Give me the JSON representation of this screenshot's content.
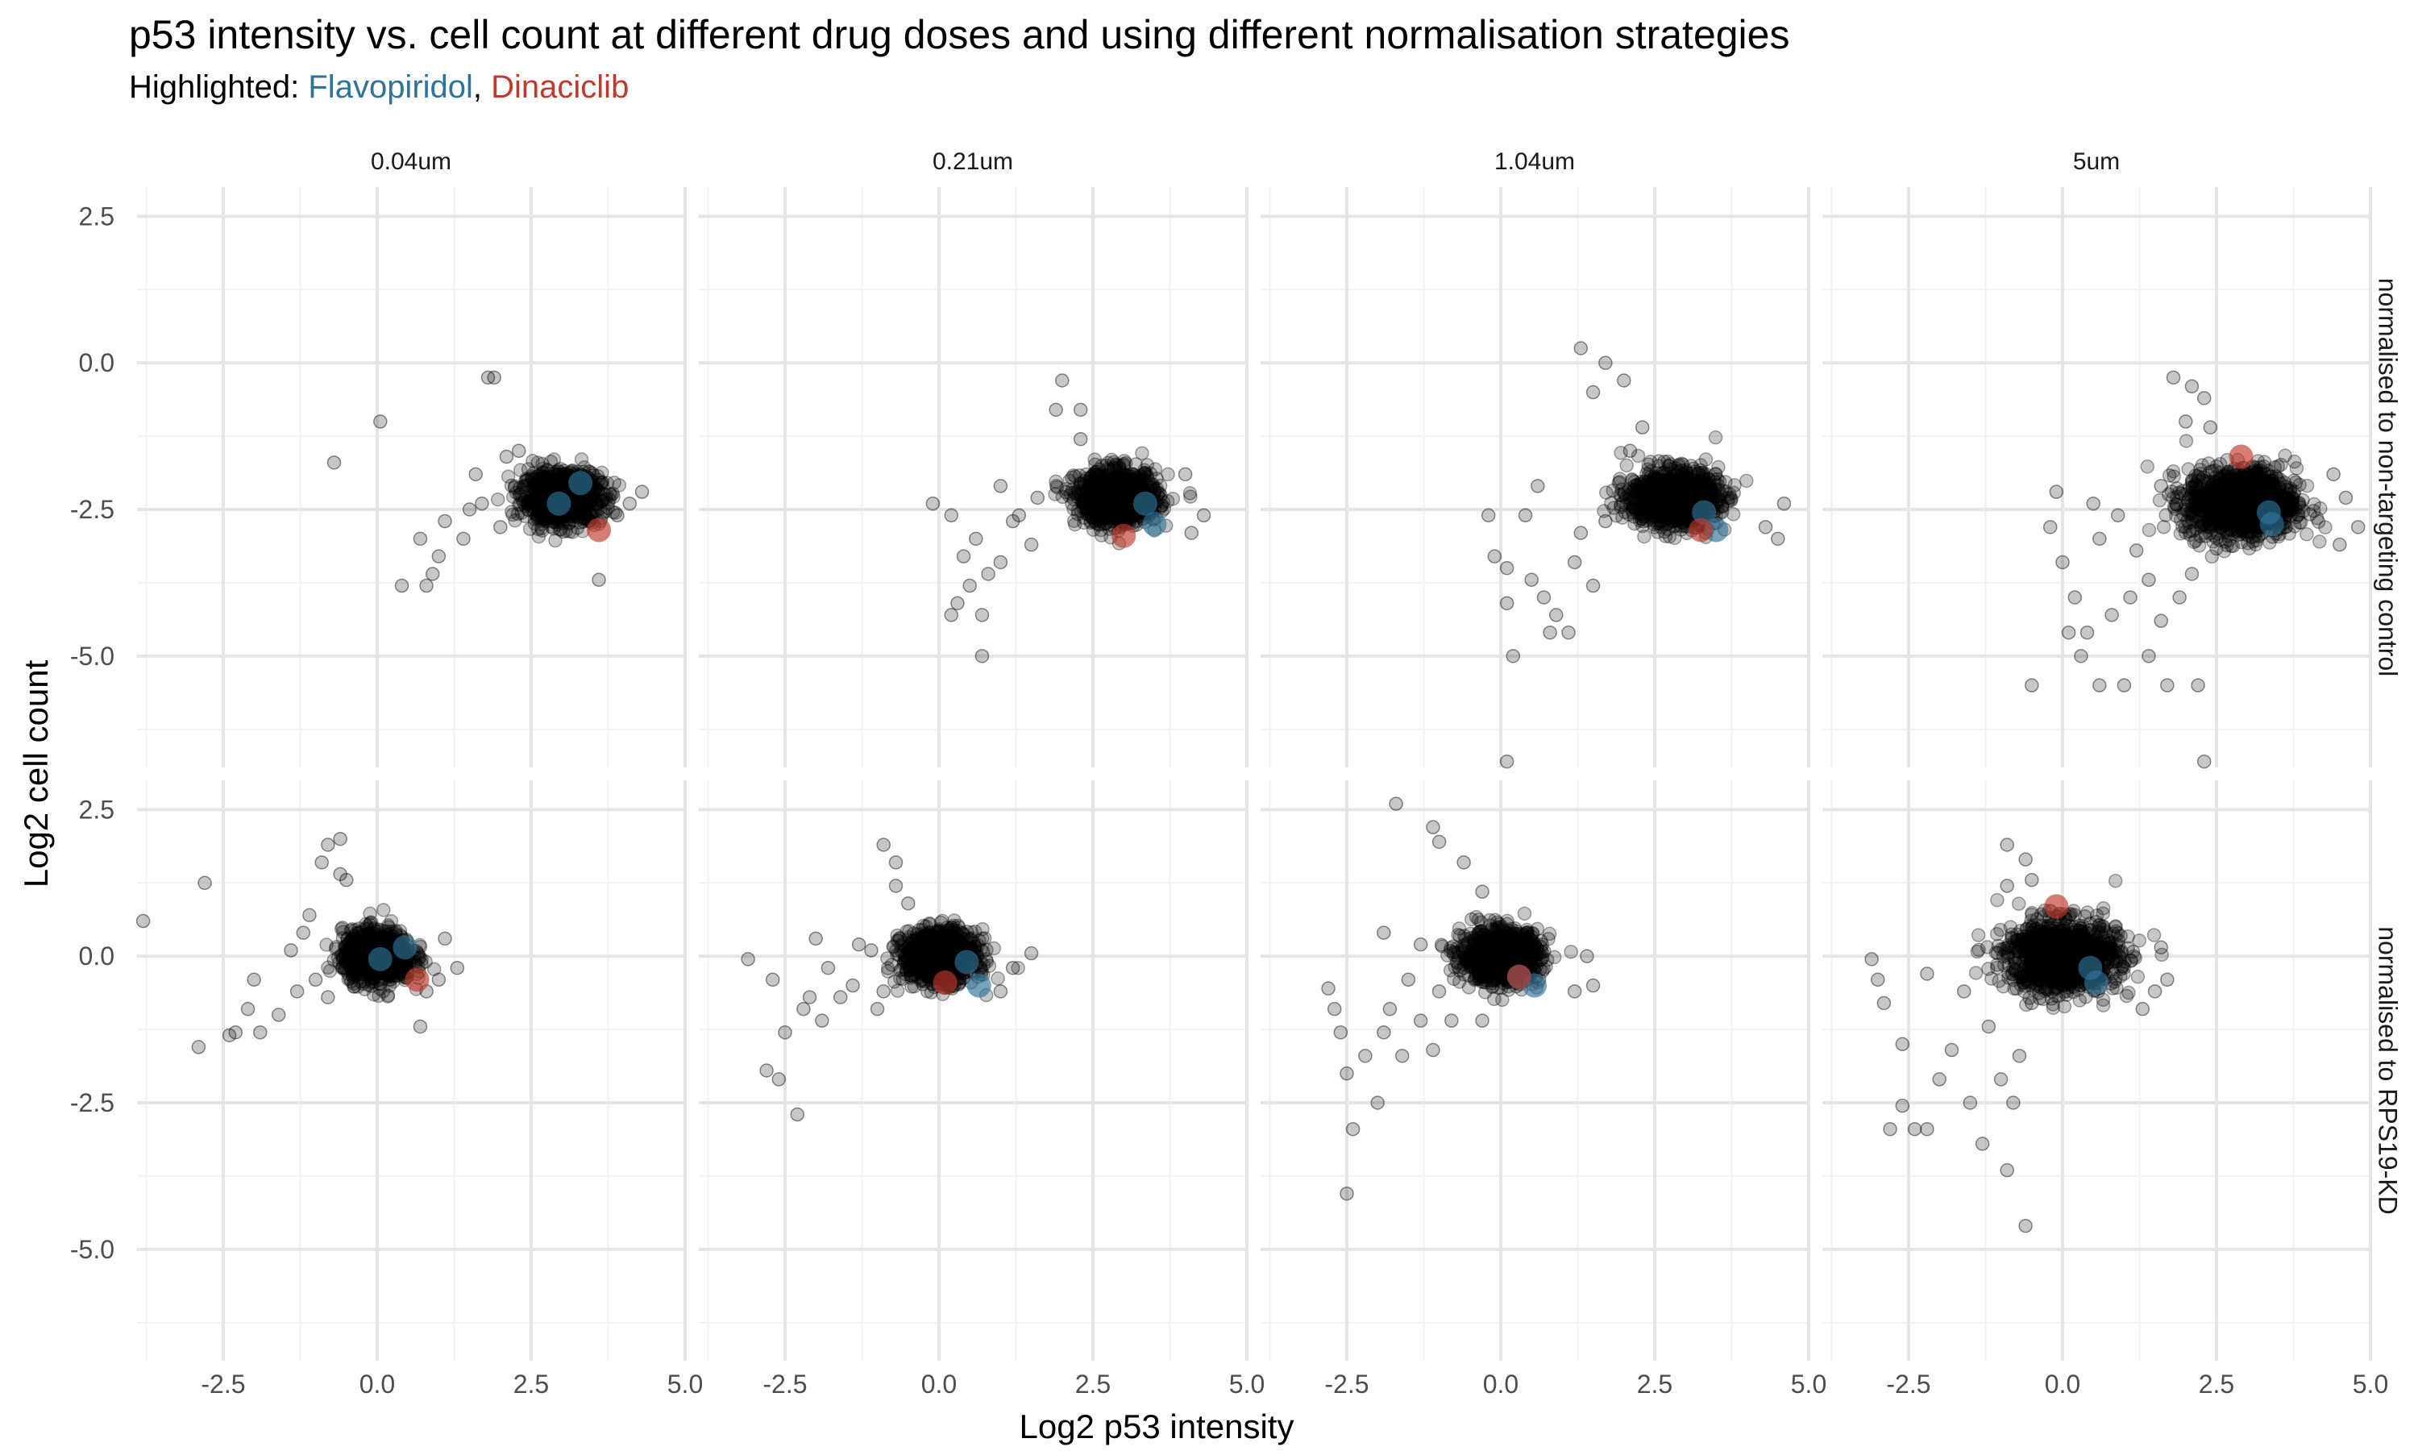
{
  "title": "p53 intensity vs. cell count at different drug doses and using different normalisation strategies",
  "subtitle": {
    "prefix": "Highlighted: ",
    "flavopiridol": "Flavopiridol",
    "separator": ", ",
    "dinaciclib": "Dinaciclib"
  },
  "colors": {
    "points": "#000000",
    "flavopiridol": "#2E7399",
    "dinaciclib": "#C0392B",
    "grid_major": "#E5E5E5",
    "grid_minor": "#F2F2F2",
    "axis_text": "#4D4D4D"
  },
  "chart_data": {
    "type": "scatter",
    "xlabel": "Log2 p53 intensity",
    "ylabel": "Log2 cell count",
    "xlim": [
      -3.9,
      5.0
    ],
    "ylim": [
      -6.9,
      3.0
    ],
    "x_ticks": [
      -2.5,
      0.0,
      2.5,
      5.0
    ],
    "x_tick_labels": [
      "-2.5",
      "0.0",
      "2.5",
      "5.0"
    ],
    "y_ticks": [
      2.5,
      0.0,
      -2.5,
      -5.0
    ],
    "y_tick_labels": [
      "2.5",
      "0.0",
      "-2.5",
      "-5.0"
    ],
    "grid": true,
    "columns": [
      "0.04um",
      "0.21um",
      "1.04um",
      "5um"
    ],
    "rows": [
      "normalised to non-targeting control",
      "normalised to RPS19-KD"
    ],
    "panels": [
      {
        "column": "0.04um",
        "row": "normalised to non-targeting control",
        "cluster": {
          "center": [
            3.0,
            -2.3
          ],
          "sx": 0.32,
          "sy": 0.22,
          "n": 900
        },
        "outliers": [
          [
            1.8,
            -0.25
          ],
          [
            1.9,
            -0.25
          ],
          [
            0.05,
            -1.0
          ],
          [
            -0.7,
            -1.7
          ],
          [
            0.7,
            -3.0
          ],
          [
            0.4,
            -3.8
          ],
          [
            0.8,
            -3.8
          ],
          [
            0.9,
            -3.6
          ],
          [
            1.0,
            -3.3
          ],
          [
            1.1,
            -2.7
          ],
          [
            1.4,
            -3.0
          ],
          [
            1.6,
            -1.9
          ],
          [
            1.5,
            -2.5
          ],
          [
            1.7,
            -2.4
          ],
          [
            2.0,
            -2.8
          ],
          [
            2.1,
            -1.6
          ],
          [
            2.3,
            -1.5
          ],
          [
            3.6,
            -3.7
          ],
          [
            4.1,
            -2.4
          ],
          [
            4.3,
            -2.2
          ],
          [
            3.9,
            -2.6
          ]
        ],
        "flavopiridol": [
          [
            3.3,
            -2.05
          ],
          [
            2.95,
            -2.4
          ]
        ],
        "dinaciclib": [
          [
            3.6,
            -2.85
          ]
        ]
      },
      {
        "column": "0.21um",
        "row": "normalised to non-targeting control",
        "cluster": {
          "center": [
            2.9,
            -2.3
          ],
          "sx": 0.33,
          "sy": 0.23,
          "n": 900
        },
        "outliers": [
          [
            2.0,
            -0.3
          ],
          [
            1.9,
            -0.8
          ],
          [
            2.3,
            -0.8
          ],
          [
            2.3,
            -1.3
          ],
          [
            -0.1,
            -2.4
          ],
          [
            0.2,
            -2.6
          ],
          [
            0.6,
            -3.0
          ],
          [
            0.4,
            -3.3
          ],
          [
            0.5,
            -3.8
          ],
          [
            0.3,
            -4.1
          ],
          [
            0.7,
            -4.3
          ],
          [
            0.2,
            -4.3
          ],
          [
            0.8,
            -3.6
          ],
          [
            0.7,
            -5.0
          ],
          [
            1.0,
            -3.4
          ],
          [
            1.2,
            -2.7
          ],
          [
            1.0,
            -2.1
          ],
          [
            1.5,
            -3.1
          ],
          [
            1.3,
            -2.6
          ],
          [
            1.6,
            -2.3
          ],
          [
            4.1,
            -2.9
          ],
          [
            4.3,
            -2.6
          ],
          [
            4.0,
            -1.9
          ]
        ],
        "flavopiridol": [
          [
            3.35,
            -2.4
          ],
          [
            3.5,
            -2.75
          ]
        ],
        "dinaciclib": [
          [
            3.0,
            -2.95
          ]
        ]
      },
      {
        "column": "1.04um",
        "row": "normalised to non-targeting control",
        "cluster": {
          "center": [
            2.8,
            -2.3
          ],
          "sx": 0.36,
          "sy": 0.24,
          "n": 950
        },
        "outliers": [
          [
            1.3,
            0.25
          ],
          [
            1.7,
            0.0
          ],
          [
            2.0,
            -0.3
          ],
          [
            1.5,
            -0.5
          ],
          [
            2.3,
            -1.1
          ],
          [
            2.1,
            -1.5
          ],
          [
            -0.2,
            -2.6
          ],
          [
            -0.1,
            -3.3
          ],
          [
            0.1,
            -3.5
          ],
          [
            0.2,
            -5.0
          ],
          [
            0.1,
            -6.8
          ],
          [
            0.1,
            -4.1
          ],
          [
            0.5,
            -3.7
          ],
          [
            0.7,
            -4.0
          ],
          [
            0.9,
            -4.3
          ],
          [
            1.1,
            -4.6
          ],
          [
            0.8,
            -4.6
          ],
          [
            1.2,
            -3.4
          ],
          [
            1.5,
            -3.8
          ],
          [
            1.3,
            -2.9
          ],
          [
            1.7,
            -2.7
          ],
          [
            4.6,
            -2.4
          ],
          [
            4.3,
            -2.8
          ],
          [
            4.5,
            -3.0
          ],
          [
            0.4,
            -2.6
          ],
          [
            0.6,
            -2.1
          ]
        ],
        "flavopiridol": [
          [
            3.3,
            -2.55
          ],
          [
            3.5,
            -2.85
          ]
        ],
        "dinaciclib": [
          [
            3.25,
            -2.85
          ]
        ]
      },
      {
        "column": "5um",
        "row": "normalised to non-targeting control",
        "cluster": {
          "center": [
            2.9,
            -2.4
          ],
          "sx": 0.45,
          "sy": 0.3,
          "n": 1100
        },
        "outliers": [
          [
            1.8,
            -0.25
          ],
          [
            2.1,
            -0.4
          ],
          [
            2.3,
            -0.6
          ],
          [
            2.0,
            -1.0
          ],
          [
            2.4,
            -1.1
          ],
          [
            -0.1,
            -2.2
          ],
          [
            -0.2,
            -2.8
          ],
          [
            0.0,
            -3.4
          ],
          [
            0.2,
            -4.0
          ],
          [
            0.4,
            -4.6
          ],
          [
            0.3,
            -5.0
          ],
          [
            -0.5,
            -5.5
          ],
          [
            0.6,
            -5.5
          ],
          [
            1.0,
            -5.5
          ],
          [
            1.7,
            -5.5
          ],
          [
            2.2,
            -5.5
          ],
          [
            2.3,
            -6.8
          ],
          [
            0.8,
            -4.3
          ],
          [
            1.1,
            -4.0
          ],
          [
            1.4,
            -3.7
          ],
          [
            1.2,
            -3.2
          ],
          [
            0.9,
            -2.6
          ],
          [
            0.6,
            -3.0
          ],
          [
            1.6,
            -4.4
          ],
          [
            1.9,
            -4.0
          ],
          [
            2.1,
            -3.6
          ],
          [
            0.5,
            -2.4
          ],
          [
            1.6,
            -2.1
          ],
          [
            4.6,
            -2.3
          ],
          [
            4.8,
            -2.8
          ],
          [
            4.5,
            -3.1
          ],
          [
            4.4,
            -1.9
          ],
          [
            0.1,
            -4.6
          ],
          [
            1.4,
            -5.0
          ]
        ],
        "flavopiridol": [
          [
            3.35,
            -2.55
          ],
          [
            3.4,
            -2.75
          ]
        ],
        "dinaciclib": [
          [
            2.9,
            -1.6
          ]
        ]
      },
      {
        "column": "0.04um",
        "row": "normalised to RPS19-KD",
        "cluster": {
          "center": [
            0.0,
            0.0
          ],
          "sx": 0.28,
          "sy": 0.22,
          "n": 900
        },
        "outliers": [
          [
            -0.8,
            1.9
          ],
          [
            -0.6,
            2.0
          ],
          [
            -0.9,
            1.6
          ],
          [
            -0.6,
            1.4
          ],
          [
            -0.5,
            1.3
          ],
          [
            -3.8,
            0.6
          ],
          [
            -2.8,
            1.25
          ],
          [
            -2.9,
            -1.55
          ],
          [
            -2.4,
            -1.35
          ],
          [
            -2.3,
            -1.3
          ],
          [
            -2.1,
            -0.9
          ],
          [
            -1.9,
            -1.3
          ],
          [
            -2.0,
            -0.4
          ],
          [
            -1.6,
            -1.0
          ],
          [
            -1.4,
            0.1
          ],
          [
            -1.3,
            -0.6
          ],
          [
            -1.2,
            0.4
          ],
          [
            -1.0,
            -0.4
          ],
          [
            -1.1,
            0.7
          ],
          [
            -0.8,
            -0.7
          ],
          [
            0.7,
            -1.2
          ],
          [
            0.8,
            -0.6
          ],
          [
            1.1,
            0.3
          ],
          [
            1.3,
            -0.2
          ],
          [
            1.0,
            -0.4
          ]
        ],
        "flavopiridol": [
          [
            0.45,
            0.15
          ],
          [
            0.05,
            -0.05
          ]
        ],
        "dinaciclib": [
          [
            0.65,
            -0.4
          ]
        ]
      },
      {
        "column": "0.21um",
        "row": "normalised to RPS19-KD",
        "cluster": {
          "center": [
            0.0,
            0.0
          ],
          "sx": 0.3,
          "sy": 0.22,
          "n": 900
        },
        "outliers": [
          [
            -0.9,
            1.9
          ],
          [
            -0.7,
            1.6
          ],
          [
            -0.7,
            1.2
          ],
          [
            -0.5,
            0.9
          ],
          [
            -3.1,
            -0.05
          ],
          [
            -2.7,
            -0.4
          ],
          [
            -2.8,
            -1.95
          ],
          [
            -2.6,
            -2.1
          ],
          [
            -2.3,
            -2.7
          ],
          [
            -2.5,
            -1.3
          ],
          [
            -2.2,
            -0.9
          ],
          [
            -2.1,
            -0.7
          ],
          [
            -1.9,
            -1.1
          ],
          [
            -1.6,
            -0.7
          ],
          [
            -1.8,
            -0.2
          ],
          [
            -1.4,
            -0.5
          ],
          [
            -1.3,
            0.2
          ],
          [
            -1.0,
            -0.9
          ],
          [
            -1.1,
            0.1
          ],
          [
            -2.0,
            0.3
          ],
          [
            1.0,
            -0.6
          ],
          [
            1.2,
            -0.2
          ],
          [
            1.5,
            0.05
          ],
          [
            -0.9,
            -0.6
          ]
        ],
        "flavopiridol": [
          [
            0.45,
            -0.1
          ],
          [
            0.65,
            -0.5
          ]
        ],
        "dinaciclib": [
          [
            0.1,
            -0.45
          ]
        ]
      },
      {
        "column": "1.04um",
        "row": "normalised to RPS19-KD",
        "cluster": {
          "center": [
            0.0,
            0.0
          ],
          "sx": 0.32,
          "sy": 0.22,
          "n": 950
        },
        "outliers": [
          [
            -1.7,
            2.6
          ],
          [
            -1.1,
            2.2
          ],
          [
            -1.0,
            1.95
          ],
          [
            -0.6,
            1.6
          ],
          [
            -0.3,
            1.1
          ],
          [
            -2.8,
            -0.55
          ],
          [
            -2.7,
            -0.9
          ],
          [
            -2.6,
            -1.3
          ],
          [
            -2.5,
            -2.0
          ],
          [
            -2.4,
            -2.95
          ],
          [
            -2.5,
            -4.05
          ],
          [
            -2.2,
            -1.7
          ],
          [
            -2.0,
            -2.5
          ],
          [
            -1.9,
            -1.3
          ],
          [
            -1.8,
            -0.9
          ],
          [
            -1.6,
            -1.7
          ],
          [
            -1.5,
            -0.4
          ],
          [
            -1.3,
            -1.1
          ],
          [
            -1.1,
            -1.6
          ],
          [
            -1.0,
            -0.6
          ],
          [
            -0.8,
            -1.1
          ],
          [
            -0.6,
            -0.2
          ],
          [
            -0.3,
            -1.1
          ],
          [
            -1.9,
            0.4
          ],
          [
            -1.3,
            0.2
          ],
          [
            1.2,
            -0.6
          ],
          [
            1.4,
            0.0
          ],
          [
            1.5,
            -0.5
          ]
        ],
        "flavopiridol": [
          [
            0.55,
            -0.5
          ],
          [
            0.3,
            -0.35
          ]
        ],
        "dinaciclib": [
          [
            0.3,
            -0.35
          ]
        ]
      },
      {
        "column": "5um",
        "row": "normalised to RPS19-KD",
        "cluster": {
          "center": [
            0.0,
            0.0
          ],
          "sx": 0.45,
          "sy": 0.3,
          "n": 1100
        },
        "outliers": [
          [
            -0.9,
            1.9
          ],
          [
            -0.6,
            1.65
          ],
          [
            -0.5,
            1.3
          ],
          [
            -0.9,
            1.2
          ],
          [
            -3.1,
            -0.05
          ],
          [
            -3.0,
            -0.4
          ],
          [
            -2.9,
            -0.8
          ],
          [
            -2.6,
            -1.5
          ],
          [
            -2.6,
            -2.55
          ],
          [
            -2.8,
            -2.95
          ],
          [
            -2.4,
            -2.95
          ],
          [
            -2.2,
            -2.95
          ],
          [
            -2.0,
            -2.1
          ],
          [
            -1.8,
            -1.6
          ],
          [
            -1.5,
            -2.5
          ],
          [
            -1.3,
            -3.2
          ],
          [
            -1.0,
            -2.1
          ],
          [
            -0.8,
            -2.5
          ],
          [
            -0.9,
            -3.65
          ],
          [
            -0.6,
            -4.6
          ],
          [
            -1.2,
            -1.2
          ],
          [
            -0.7,
            -1.7
          ],
          [
            -0.5,
            -0.8
          ],
          [
            -1.6,
            -0.6
          ],
          [
            -2.2,
            -0.3
          ],
          [
            1.6,
            0.15
          ],
          [
            1.5,
            -0.6
          ],
          [
            1.3,
            -0.9
          ],
          [
            1.7,
            -0.4
          ]
        ],
        "flavopiridol": [
          [
            0.45,
            -0.2
          ],
          [
            0.55,
            -0.45
          ]
        ],
        "dinaciclib": [
          [
            -0.1,
            0.85
          ]
        ]
      }
    ]
  }
}
